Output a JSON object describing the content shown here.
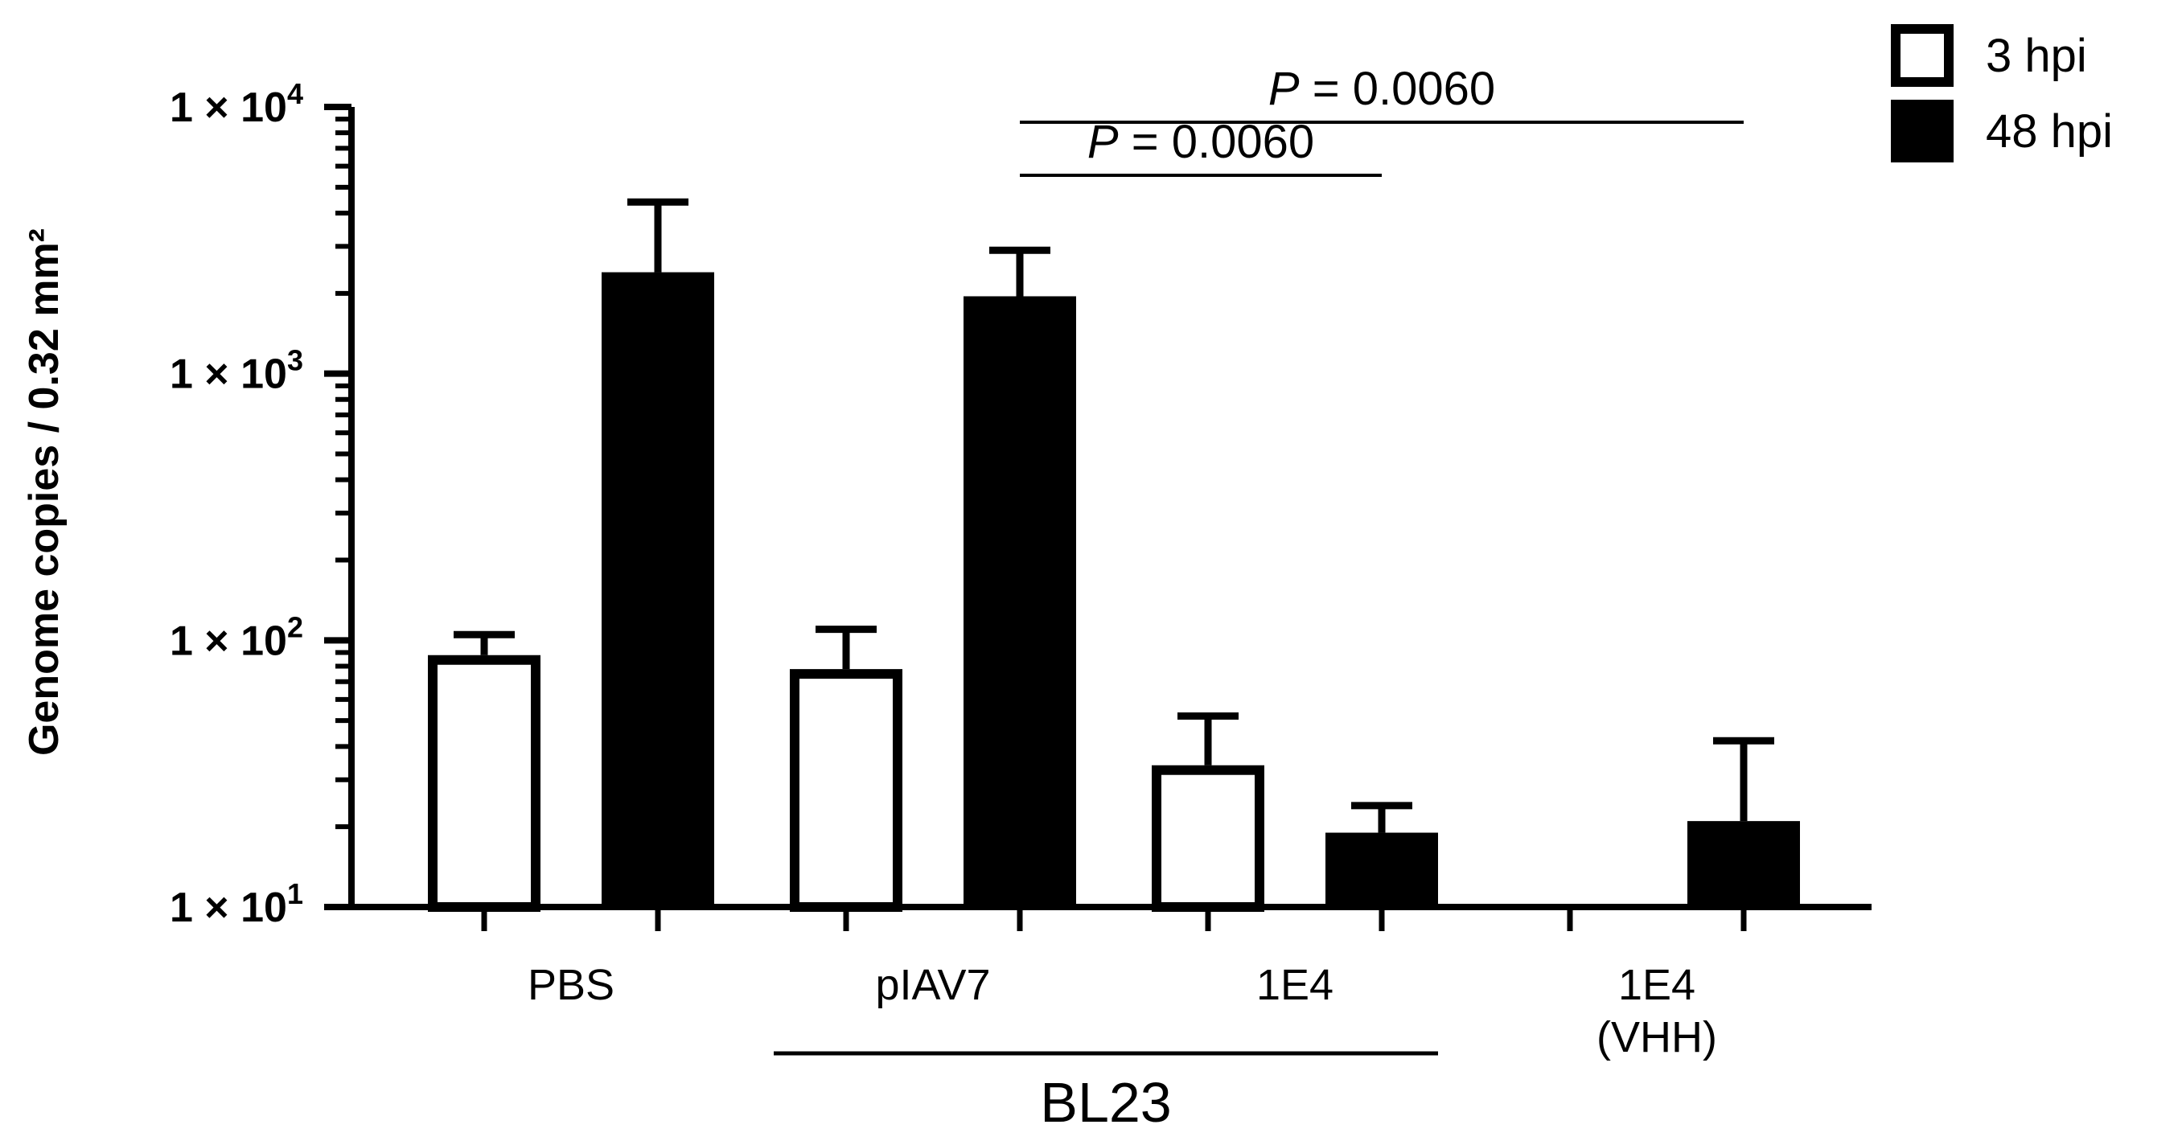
{
  "chart_data": {
    "type": "bar",
    "ylabel": "Genome copies / 0.32 mm²",
    "yscale": "log",
    "ylim": [
      10,
      10000
    ],
    "yticks": [
      {
        "value": 10,
        "label_base": "1 × 10",
        "label_exp": "1"
      },
      {
        "value": 100,
        "label_base": "1 × 10",
        "label_exp": "2"
      },
      {
        "value": 1000,
        "label_base": "1 × 10",
        "label_exp": "3"
      },
      {
        "value": 10000,
        "label_base": "1 × 10",
        "label_exp": "4"
      }
    ],
    "categories": [
      "PBS",
      "pIAV7",
      "1E4",
      "1E4\n(VHH)"
    ],
    "category_labels": [
      {
        "lines": [
          "PBS"
        ]
      },
      {
        "lines": [
          "pIAV7"
        ]
      },
      {
        "lines": [
          "1E4"
        ]
      },
      {
        "lines": [
          "1E4",
          "(VHH)"
        ]
      }
    ],
    "group_label": {
      "text": "BL23",
      "categories": [
        "pIAV7",
        "1E4"
      ]
    },
    "series": [
      {
        "name": "3 hpi",
        "fill": "#ffffff",
        "stroke": "#000000",
        "values": [
          88,
          78,
          34,
          null
        ],
        "errors_upper": [
          105,
          110,
          52,
          null
        ]
      },
      {
        "name": "48 hpi",
        "fill": "#000000",
        "stroke": "#000000",
        "values": [
          2400,
          1950,
          19,
          21
        ],
        "errors_upper": [
          4400,
          2900,
          24,
          42
        ]
      }
    ],
    "annotations": [
      {
        "text_italic": "P",
        "text_rest": " = 0.0060",
        "from": {
          "category": 1,
          "series": 1
        },
        "to": {
          "category": 3,
          "series": 1
        }
      },
      {
        "text_italic": "P",
        "text_rest": " = 0.0060",
        "from": {
          "category": 1,
          "series": 1
        },
        "to": {
          "category": 2,
          "series": 1
        }
      }
    ],
    "legend": {
      "position": "top-right"
    },
    "grid": false
  }
}
